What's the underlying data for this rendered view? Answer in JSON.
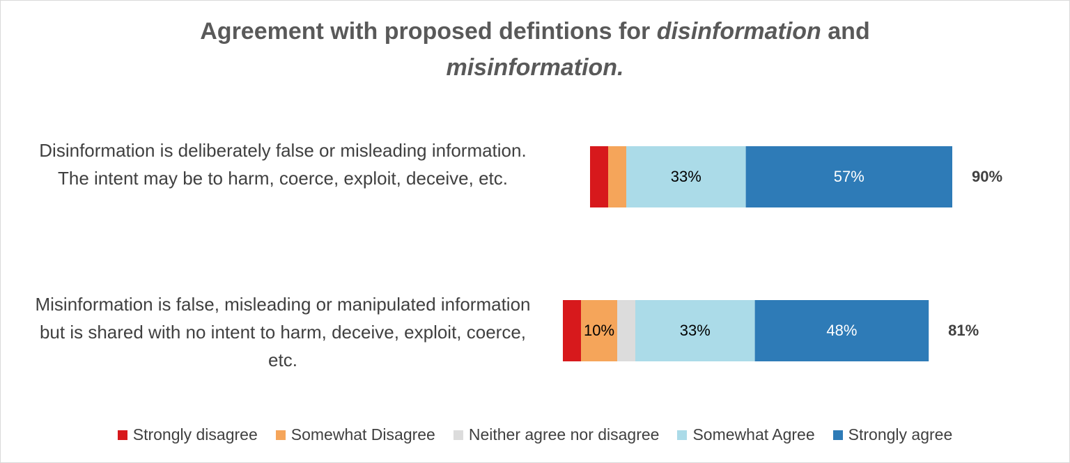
{
  "chart_data": {
    "type": "diverging_bar",
    "title": [
      {
        "text": "Agreement with proposed defintions for ",
        "italic": false
      },
      {
        "text": "disinformation",
        "italic": true
      },
      {
        "text": " and ",
        "italic": false
      },
      {
        "text": "misinformation.",
        "italic": true
      }
    ],
    "categories": [
      "Disinformation is deliberately false or misleading information. The intent may be to harm, coerce, exploit, deceive, etc.",
      "Misinformation is false, misleading or manipulated information but is shared with no intent to harm, deceive, exploit, coerce, etc."
    ],
    "series": [
      {
        "name": "Strongly disagree",
        "color": "#d7191c",
        "label_color": "#000000",
        "side": "disagree",
        "values": [
          5,
          5
        ],
        "value_labels": [
          null,
          null
        ]
      },
      {
        "name": "Somewhat Disagree",
        "color": "#f5a55a",
        "label_color": "#000000",
        "side": "disagree",
        "values": [
          5,
          10
        ],
        "value_labels": [
          null,
          "10%"
        ]
      },
      {
        "name": "Neither agree nor disagree",
        "color": "#dcdcdc",
        "label_color": "#000000",
        "side": "neutral",
        "values": [
          0,
          5
        ],
        "value_labels": [
          null,
          null
        ]
      },
      {
        "name": "Somewhat Agree",
        "color": "#abdbe8",
        "label_color": "#000000",
        "side": "agree",
        "values": [
          33,
          33
        ],
        "value_labels": [
          "33%",
          "33%"
        ]
      },
      {
        "name": "Strongly agree",
        "color": "#2e7bb7",
        "label_color": "#ffffff",
        "side": "agree",
        "values": [
          57,
          48
        ],
        "value_labels": [
          "57%",
          "48%"
        ]
      }
    ],
    "totals": {
      "values": [
        90,
        81
      ],
      "value_labels": [
        "90%",
        "81%"
      ]
    }
  }
}
